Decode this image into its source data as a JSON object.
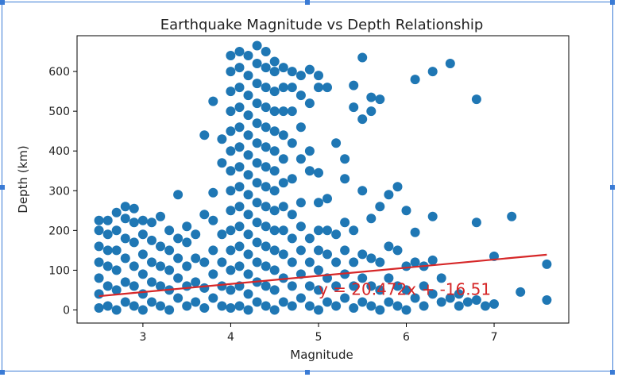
{
  "colors": {
    "points": "#1f77b4",
    "fit_line": "#d62728",
    "selection": "#3a7bd5",
    "axes": "#000000"
  },
  "chart_data": {
    "type": "scatter",
    "title": "Earthquake Magnitude vs Depth Relationship",
    "xlabel": "Magnitude",
    "ylabel": "Depth (km)",
    "xlim": [
      2.25,
      7.85
    ],
    "ylim": [
      -33,
      690
    ],
    "xticks": [
      3,
      4,
      5,
      6,
      7
    ],
    "yticks": [
      0,
      100,
      200,
      300,
      400,
      500,
      600
    ],
    "grid": false,
    "fit": {
      "slope": 20.472,
      "intercept": -16.51,
      "x_range": [
        2.5,
        7.6
      ],
      "label": "y = 20.472x + -16.51",
      "label_at": [
        5.0,
        38
      ]
    },
    "points": [
      [
        2.5,
        5
      ],
      [
        2.5,
        40
      ],
      [
        2.5,
        80
      ],
      [
        2.5,
        120
      ],
      [
        2.5,
        160
      ],
      [
        2.5,
        200
      ],
      [
        2.5,
        225
      ],
      [
        2.6,
        10
      ],
      [
        2.6,
        60
      ],
      [
        2.6,
        110
      ],
      [
        2.6,
        150
      ],
      [
        2.6,
        190
      ],
      [
        2.6,
        225
      ],
      [
        2.7,
        0
      ],
      [
        2.7,
        50
      ],
      [
        2.7,
        100
      ],
      [
        2.7,
        150
      ],
      [
        2.7,
        200
      ],
      [
        2.7,
        245
      ],
      [
        2.8,
        20
      ],
      [
        2.8,
        70
      ],
      [
        2.8,
        130
      ],
      [
        2.8,
        180
      ],
      [
        2.8,
        230
      ],
      [
        2.8,
        260
      ],
      [
        2.9,
        10
      ],
      [
        2.9,
        60
      ],
      [
        2.9,
        110
      ],
      [
        2.9,
        170
      ],
      [
        2.9,
        220
      ],
      [
        2.9,
        255
      ],
      [
        3.0,
        0
      ],
      [
        3.0,
        40
      ],
      [
        3.0,
        90
      ],
      [
        3.0,
        140
      ],
      [
        3.0,
        190
      ],
      [
        3.0,
        225
      ],
      [
        3.1,
        20
      ],
      [
        3.1,
        70
      ],
      [
        3.1,
        120
      ],
      [
        3.1,
        175
      ],
      [
        3.1,
        220
      ],
      [
        3.2,
        10
      ],
      [
        3.2,
        60
      ],
      [
        3.2,
        110
      ],
      [
        3.2,
        160
      ],
      [
        3.2,
        235
      ],
      [
        3.3,
        0
      ],
      [
        3.3,
        50
      ],
      [
        3.3,
        100
      ],
      [
        3.3,
        150
      ],
      [
        3.3,
        200
      ],
      [
        3.4,
        30
      ],
      [
        3.4,
        80
      ],
      [
        3.4,
        130
      ],
      [
        3.4,
        180
      ],
      [
        3.4,
        290
      ],
      [
        3.5,
        10
      ],
      [
        3.5,
        60
      ],
      [
        3.5,
        110
      ],
      [
        3.5,
        170
      ],
      [
        3.5,
        210
      ],
      [
        3.6,
        20
      ],
      [
        3.6,
        70
      ],
      [
        3.6,
        130
      ],
      [
        3.6,
        190
      ],
      [
        3.7,
        5
      ],
      [
        3.7,
        55
      ],
      [
        3.7,
        120
      ],
      [
        3.7,
        240
      ],
      [
        3.7,
        440
      ],
      [
        3.8,
        30
      ],
      [
        3.8,
        90
      ],
      [
        3.8,
        150
      ],
      [
        3.8,
        225
      ],
      [
        3.8,
        295
      ],
      [
        3.8,
        525
      ],
      [
        3.9,
        10
      ],
      [
        3.9,
        60
      ],
      [
        3.9,
        120
      ],
      [
        3.9,
        190
      ],
      [
        3.9,
        370
      ],
      [
        3.9,
        430
      ],
      [
        4.0,
        5
      ],
      [
        4.0,
        50
      ],
      [
        4.0,
        100
      ],
      [
        4.0,
        150
      ],
      [
        4.0,
        200
      ],
      [
        4.0,
        250
      ],
      [
        4.0,
        300
      ],
      [
        4.0,
        350
      ],
      [
        4.0,
        400
      ],
      [
        4.0,
        450
      ],
      [
        4.0,
        500
      ],
      [
        4.0,
        550
      ],
      [
        4.0,
        600
      ],
      [
        4.0,
        640
      ],
      [
        4.1,
        10
      ],
      [
        4.1,
        60
      ],
      [
        4.1,
        110
      ],
      [
        4.1,
        160
      ],
      [
        4.1,
        210
      ],
      [
        4.1,
        260
      ],
      [
        4.1,
        310
      ],
      [
        4.1,
        360
      ],
      [
        4.1,
        410
      ],
      [
        4.1,
        460
      ],
      [
        4.1,
        510
      ],
      [
        4.1,
        560
      ],
      [
        4.1,
        610
      ],
      [
        4.1,
        650
      ],
      [
        4.2,
        0
      ],
      [
        4.2,
        40
      ],
      [
        4.2,
        90
      ],
      [
        4.2,
        140
      ],
      [
        4.2,
        190
      ],
      [
        4.2,
        240
      ],
      [
        4.2,
        290
      ],
      [
        4.2,
        340
      ],
      [
        4.2,
        390
      ],
      [
        4.2,
        440
      ],
      [
        4.2,
        490
      ],
      [
        4.2,
        540
      ],
      [
        4.2,
        590
      ],
      [
        4.2,
        640
      ],
      [
        4.3,
        20
      ],
      [
        4.3,
        70
      ],
      [
        4.3,
        120
      ],
      [
        4.3,
        170
      ],
      [
        4.3,
        220
      ],
      [
        4.3,
        270
      ],
      [
        4.3,
        320
      ],
      [
        4.3,
        370
      ],
      [
        4.3,
        420
      ],
      [
        4.3,
        470
      ],
      [
        4.3,
        520
      ],
      [
        4.3,
        570
      ],
      [
        4.3,
        620
      ],
      [
        4.3,
        665
      ],
      [
        4.4,
        10
      ],
      [
        4.4,
        60
      ],
      [
        4.4,
        110
      ],
      [
        4.4,
        160
      ],
      [
        4.4,
        210
      ],
      [
        4.4,
        260
      ],
      [
        4.4,
        310
      ],
      [
        4.4,
        360
      ],
      [
        4.4,
        410
      ],
      [
        4.4,
        460
      ],
      [
        4.4,
        510
      ],
      [
        4.4,
        560
      ],
      [
        4.4,
        610
      ],
      [
        4.4,
        650
      ],
      [
        4.5,
        0
      ],
      [
        4.5,
        50
      ],
      [
        4.5,
        100
      ],
      [
        4.5,
        150
      ],
      [
        4.5,
        200
      ],
      [
        4.5,
        250
      ],
      [
        4.5,
        300
      ],
      [
        4.5,
        350
      ],
      [
        4.5,
        400
      ],
      [
        4.5,
        450
      ],
      [
        4.5,
        500
      ],
      [
        4.5,
        550
      ],
      [
        4.5,
        600
      ],
      [
        4.5,
        625
      ],
      [
        4.6,
        20
      ],
      [
        4.6,
        80
      ],
      [
        4.6,
        140
      ],
      [
        4.6,
        200
      ],
      [
        4.6,
        260
      ],
      [
        4.6,
        320
      ],
      [
        4.6,
        380
      ],
      [
        4.6,
        440
      ],
      [
        4.6,
        500
      ],
      [
        4.6,
        560
      ],
      [
        4.6,
        610
      ],
      [
        4.7,
        10
      ],
      [
        4.7,
        60
      ],
      [
        4.7,
        120
      ],
      [
        4.7,
        180
      ],
      [
        4.7,
        240
      ],
      [
        4.7,
        330
      ],
      [
        4.7,
        420
      ],
      [
        4.7,
        500
      ],
      [
        4.7,
        560
      ],
      [
        4.7,
        600
      ],
      [
        4.8,
        30
      ],
      [
        4.8,
        90
      ],
      [
        4.8,
        150
      ],
      [
        4.8,
        210
      ],
      [
        4.8,
        270
      ],
      [
        4.8,
        380
      ],
      [
        4.8,
        460
      ],
      [
        4.8,
        540
      ],
      [
        4.8,
        590
      ],
      [
        4.9,
        10
      ],
      [
        4.9,
        60
      ],
      [
        4.9,
        120
      ],
      [
        4.9,
        180
      ],
      [
        4.9,
        350
      ],
      [
        4.9,
        400
      ],
      [
        4.9,
        520
      ],
      [
        4.9,
        605
      ],
      [
        5.0,
        0
      ],
      [
        5.0,
        50
      ],
      [
        5.0,
        100
      ],
      [
        5.0,
        150
      ],
      [
        5.0,
        200
      ],
      [
        5.0,
        270
      ],
      [
        5.0,
        345
      ],
      [
        5.0,
        560
      ],
      [
        5.0,
        590
      ],
      [
        5.1,
        20
      ],
      [
        5.1,
        80
      ],
      [
        5.1,
        140
      ],
      [
        5.1,
        200
      ],
      [
        5.1,
        280
      ],
      [
        5.1,
        560
      ],
      [
        5.2,
        10
      ],
      [
        5.2,
        60
      ],
      [
        5.2,
        120
      ],
      [
        5.2,
        190
      ],
      [
        5.2,
        420
      ],
      [
        5.3,
        30
      ],
      [
        5.3,
        90
      ],
      [
        5.3,
        150
      ],
      [
        5.3,
        220
      ],
      [
        5.3,
        380
      ],
      [
        5.3,
        330
      ],
      [
        5.4,
        5
      ],
      [
        5.4,
        60
      ],
      [
        5.4,
        120
      ],
      [
        5.4,
        200
      ],
      [
        5.4,
        510
      ],
      [
        5.4,
        565
      ],
      [
        5.5,
        20
      ],
      [
        5.5,
        80
      ],
      [
        5.5,
        140
      ],
      [
        5.5,
        300
      ],
      [
        5.5,
        480
      ],
      [
        5.5,
        635
      ],
      [
        5.6,
        10
      ],
      [
        5.6,
        60
      ],
      [
        5.6,
        130
      ],
      [
        5.6,
        230
      ],
      [
        5.6,
        500
      ],
      [
        5.6,
        535
      ],
      [
        5.7,
        0
      ],
      [
        5.7,
        50
      ],
      [
        5.7,
        120
      ],
      [
        5.7,
        260
      ],
      [
        5.7,
        530
      ],
      [
        5.8,
        20
      ],
      [
        5.8,
        80
      ],
      [
        5.8,
        160
      ],
      [
        5.8,
        290
      ],
      [
        5.9,
        10
      ],
      [
        5.9,
        60
      ],
      [
        5.9,
        150
      ],
      [
        5.9,
        310
      ],
      [
        6.0,
        0
      ],
      [
        6.0,
        50
      ],
      [
        6.0,
        110
      ],
      [
        6.0,
        250
      ],
      [
        6.1,
        30
      ],
      [
        6.1,
        120
      ],
      [
        6.1,
        195
      ],
      [
        6.1,
        580
      ],
      [
        6.2,
        10
      ],
      [
        6.2,
        60
      ],
      [
        6.2,
        110
      ],
      [
        6.3,
        40
      ],
      [
        6.3,
        125
      ],
      [
        6.3,
        235
      ],
      [
        6.3,
        600
      ],
      [
        6.4,
        20
      ],
      [
        6.4,
        80
      ],
      [
        6.5,
        30
      ],
      [
        6.5,
        620
      ],
      [
        6.6,
        10
      ],
      [
        6.6,
        40
      ],
      [
        6.7,
        20
      ],
      [
        6.8,
        25
      ],
      [
        6.8,
        220
      ],
      [
        6.8,
        530
      ],
      [
        6.9,
        10
      ],
      [
        7.0,
        15
      ],
      [
        7.0,
        135
      ],
      [
        7.2,
        235
      ],
      [
        7.3,
        45
      ],
      [
        7.6,
        25
      ],
      [
        7.6,
        115
      ]
    ]
  }
}
